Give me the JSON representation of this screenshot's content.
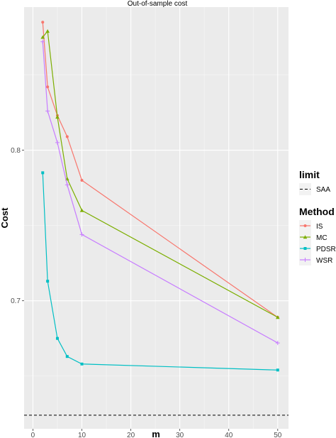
{
  "chart_data": {
    "type": "line",
    "title": "Out-of-sample cost",
    "xlabel": "m",
    "ylabel": "Cost",
    "xlim": [
      -1.8,
      52.2
    ],
    "ylim": [
      0.615,
      0.895
    ],
    "x_ticks": [
      0,
      10,
      20,
      30,
      40,
      50
    ],
    "x_tick_labels": [
      "0",
      "10",
      "20",
      "30",
      "40",
      "50"
    ],
    "y_ticks": [
      0.7,
      0.8
    ],
    "y_tick_labels": [
      "0.7",
      "0.8"
    ],
    "grid": true,
    "legend_position": "right",
    "limit": {
      "legend_title": "limit",
      "name": "SAA",
      "value": 0.624,
      "color": "#000000",
      "dash": "dashed"
    },
    "method_legend_title": "Method",
    "series": [
      {
        "name": "IS",
        "color": "#F8766D",
        "marker": "circle",
        "x": [
          2,
          3,
          5,
          7,
          10,
          50
        ],
        "y": [
          0.885,
          0.842,
          0.823,
          0.809,
          0.78,
          0.689
        ]
      },
      {
        "name": "MC",
        "color": "#7CAE00",
        "marker": "triangle",
        "x": [
          2,
          3,
          5,
          7,
          10,
          50
        ],
        "y": [
          0.875,
          0.879,
          0.822,
          0.781,
          0.76,
          0.689
        ]
      },
      {
        "name": "PDSR",
        "color": "#00BFC4",
        "marker": "square",
        "x": [
          2,
          3,
          5,
          7,
          10,
          50
        ],
        "y": [
          0.785,
          0.713,
          0.675,
          0.663,
          0.658,
          0.654
        ]
      },
      {
        "name": "WSR",
        "color": "#C77CFF",
        "marker": "plus",
        "x": [
          2,
          3,
          5,
          7,
          10,
          50
        ],
        "y": [
          0.872,
          0.826,
          0.805,
          0.777,
          0.744,
          0.672
        ]
      }
    ]
  }
}
